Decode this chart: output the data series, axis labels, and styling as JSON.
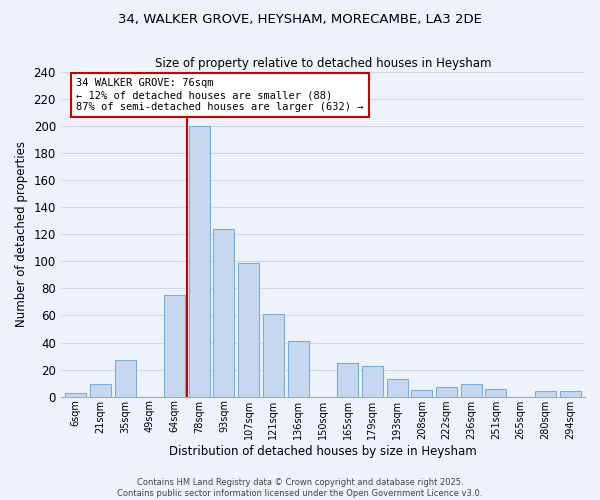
{
  "title_line1": "34, WALKER GROVE, HEYSHAM, MORECAMBE, LA3 2DE",
  "title_line2": "Size of property relative to detached houses in Heysham",
  "xlabel": "Distribution of detached houses by size in Heysham",
  "ylabel": "Number of detached properties",
  "bar_labels": [
    "6sqm",
    "21sqm",
    "35sqm",
    "49sqm",
    "64sqm",
    "78sqm",
    "93sqm",
    "107sqm",
    "121sqm",
    "136sqm",
    "150sqm",
    "165sqm",
    "179sqm",
    "193sqm",
    "208sqm",
    "222sqm",
    "236sqm",
    "251sqm",
    "265sqm",
    "280sqm",
    "294sqm"
  ],
  "bar_values": [
    3,
    9,
    27,
    0,
    75,
    200,
    124,
    99,
    61,
    41,
    0,
    25,
    23,
    13,
    5,
    7,
    9,
    6,
    0,
    4,
    4
  ],
  "bar_color": "#c5d8f0",
  "bar_edge_color": "#7aaed6",
  "grid_color": "#d0d8e8",
  "background_color": "#eef2fa",
  "property_line_x": 4.5,
  "property_line_color": "#cc0000",
  "annotation_text": "34 WALKER GROVE: 76sqm\n← 12% of detached houses are smaller (88)\n87% of semi-detached houses are larger (632) →",
  "annotation_box_color": "#ffffff",
  "annotation_box_edge": "#cc0000",
  "ylim": [
    0,
    240
  ],
  "yticks": [
    0,
    20,
    40,
    60,
    80,
    100,
    120,
    140,
    160,
    180,
    200,
    220,
    240
  ],
  "footer_line1": "Contains HM Land Registry data © Crown copyright and database right 2025.",
  "footer_line2": "Contains public sector information licensed under the Open Government Licence v3.0."
}
